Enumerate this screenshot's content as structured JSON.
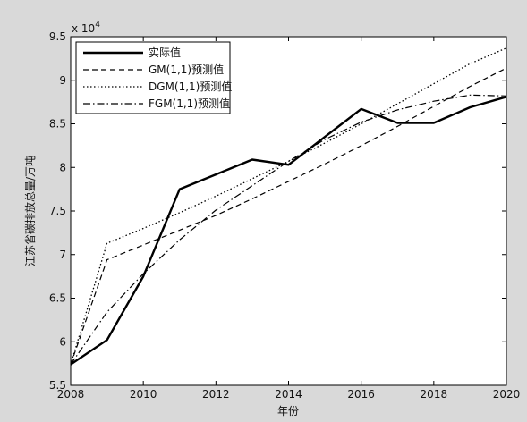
{
  "chart_data": {
    "type": "line",
    "xlabel": "年份",
    "ylabel": "江苏省碳排放总量/万吨",
    "y_multiplier": "x 10^4",
    "multiplier_text": "x 10",
    "multiplier_exp": "4",
    "xlim": [
      2008,
      2020
    ],
    "ylim": [
      5.5,
      9.5
    ],
    "x_ticks": [
      "2008",
      "2010",
      "2012",
      "2014",
      "2016",
      "2018",
      "2020"
    ],
    "y_ticks": [
      "5.5",
      "6",
      "6.5",
      "7",
      "7.5",
      "8",
      "8.5",
      "9",
      "9.5"
    ],
    "legend_position": "top-left",
    "grid": false,
    "x": [
      2008,
      2009,
      2010,
      2011,
      2012,
      2013,
      2014,
      2015,
      2016,
      2017,
      2018,
      2019,
      2020
    ],
    "series": [
      {
        "name": "实际值",
        "style": "solid",
        "values": [
          5.74,
          6.02,
          6.75,
          7.75,
          7.92,
          8.09,
          8.03,
          8.35,
          8.67,
          8.51,
          8.51,
          8.69,
          8.81
        ]
      },
      {
        "name": "GM(1,1)预测值",
        "style": "dashed",
        "values": [
          5.74,
          6.94,
          7.11,
          7.28,
          7.45,
          7.64,
          7.84,
          8.04,
          8.25,
          8.47,
          8.7,
          8.93,
          9.14
        ]
      },
      {
        "name": "DGM(1,1)预测值",
        "style": "dotted",
        "values": [
          5.74,
          7.13,
          7.3,
          7.48,
          7.67,
          7.87,
          8.07,
          8.28,
          8.5,
          8.73,
          8.96,
          9.19,
          9.37
        ]
      },
      {
        "name": "FGM(1,1)预测值",
        "style": "dashdot",
        "values": [
          5.74,
          6.34,
          6.78,
          7.17,
          7.51,
          7.79,
          8.07,
          8.32,
          8.52,
          8.66,
          8.76,
          8.83,
          8.82
        ]
      }
    ]
  }
}
